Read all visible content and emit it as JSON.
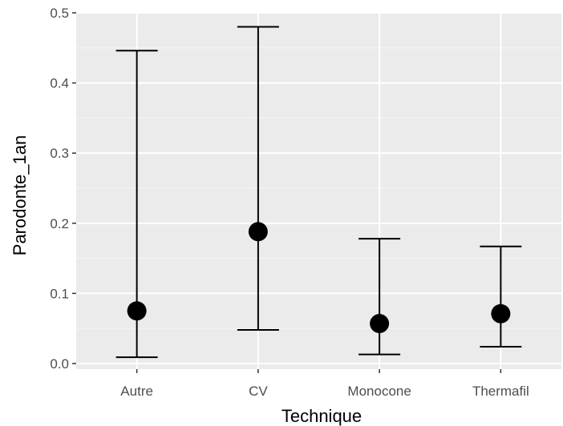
{
  "chart_data": {
    "type": "errorbar",
    "xlabel": "Technique",
    "ylabel": "Parodonte_1an",
    "categories": [
      "Autre",
      "CV",
      "Monocone",
      "Thermafil"
    ],
    "estimates": [
      0.075,
      0.188,
      0.057,
      0.071
    ],
    "lower": [
      0.009,
      0.048,
      0.013,
      0.024
    ],
    "upper": [
      0.446,
      0.48,
      0.178,
      0.167
    ],
    "ylim": [
      -0.008,
      0.5
    ],
    "yticks": [
      0.0,
      0.1,
      0.2,
      0.3,
      0.4,
      0.5
    ],
    "ytick_labels": [
      "0.0",
      "0.1",
      "0.2",
      "0.3",
      "0.4",
      "0.5"
    ],
    "grid": true,
    "legend": "none",
    "colors": {
      "panel_background": "#ebebeb",
      "grid_major": "#ffffff",
      "grid_minor": "#f5f5f5",
      "marks": "#000000",
      "tick_text": "#4d4d4d",
      "tick_marks": "#333333"
    }
  }
}
